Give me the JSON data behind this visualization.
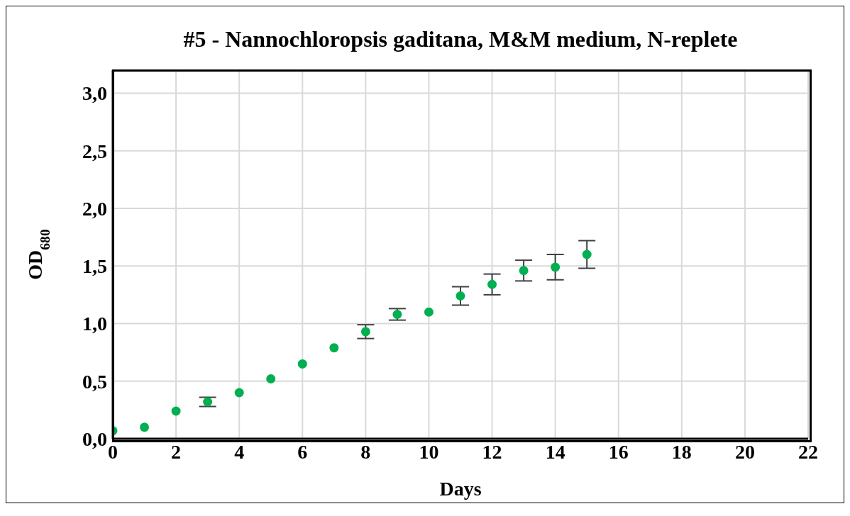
{
  "chart_data": {
    "type": "scatter",
    "title": "#5 - Nannochloropsis gaditana, M&M medium, N-replete",
    "xlabel": "Days",
    "ylabel": "OD$_{680}$",
    "x": [
      0,
      1,
      2,
      3,
      4,
      5,
      6,
      7,
      8,
      9,
      10,
      11,
      12,
      13,
      14,
      15
    ],
    "series": [
      {
        "color": "#00b050",
        "values": [
          0.07,
          0.1,
          0.24,
          0.32,
          0.4,
          0.52,
          0.65,
          0.79,
          0.93,
          1.08,
          1.1,
          1.24,
          1.34,
          1.46,
          1.49,
          1.6
        ],
        "errors": [
          null,
          null,
          null,
          0.04,
          null,
          null,
          null,
          null,
          0.06,
          0.05,
          null,
          0.08,
          0.09,
          0.09,
          0.11,
          0.12
        ]
      }
    ],
    "xlim": [
      0,
      22
    ],
    "xticks": [
      0,
      2,
      4,
      6,
      8,
      10,
      12,
      14,
      16,
      18,
      20,
      22
    ],
    "ylim": [
      0,
      3.2
    ],
    "yticks": [
      {
        "value": 0,
        "label": "0,0"
      },
      {
        "value": 0.5,
        "label": "0,5"
      },
      {
        "value": 1,
        "label": "1,0"
      },
      {
        "value": 1.5,
        "label": "1,5"
      },
      {
        "value": 2,
        "label": "2,0"
      },
      {
        "value": 2.5,
        "label": "2,5"
      },
      {
        "value": 3,
        "label": "3,0"
      }
    ],
    "grid": true,
    "marker": "circle",
    "legend": false
  }
}
